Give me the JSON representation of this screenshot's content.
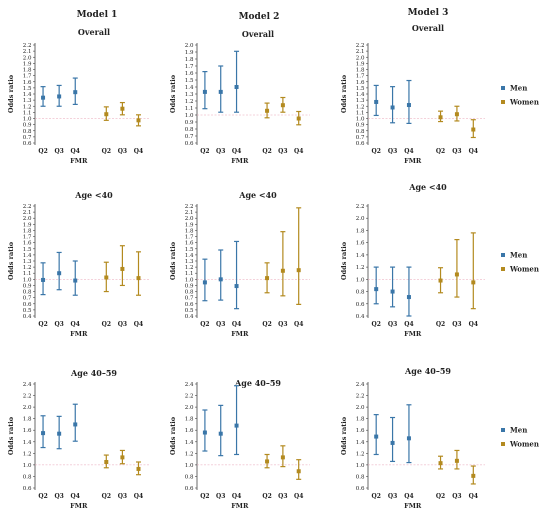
{
  "figure": {
    "model_titles": [
      "Model 1",
      "Model 2",
      "Model 3"
    ],
    "legend": [
      {
        "label": "Men",
        "color": "#3a76a8"
      },
      {
        "label": "Women",
        "color": "#b38a1f"
      }
    ]
  },
  "chart_data": [
    {
      "type": "scatter",
      "title": "Overall",
      "xlabel": "FMR",
      "ylabel": "Odds ratio",
      "ylim": [
        0.6,
        2.2
      ],
      "yticks": [
        0.6,
        0.7,
        0.8,
        0.9,
        1.0,
        1.1,
        1.2,
        1.3,
        1.4,
        1.5,
        1.6,
        1.7,
        1.8,
        1.9,
        2.0,
        2.1,
        2.2
      ],
      "categories": [
        "Q2",
        "Q3",
        "Q4",
        "Q2",
        "Q3",
        "Q4"
      ],
      "series": [
        {
          "name": "Men",
          "color": "#3a76a8",
          "points": [
            [
              1.34,
              1.2,
              1.52
            ],
            [
              1.36,
              1.2,
              1.54
            ],
            [
              1.43,
              1.23,
              1.66
            ]
          ]
        },
        {
          "name": "Women",
          "color": "#b38a1f",
          "points": [
            [
              1.07,
              0.97,
              1.19
            ],
            [
              1.16,
              1.06,
              1.26
            ],
            [
              0.97,
              0.88,
              1.06
            ]
          ]
        }
      ],
      "legend": false
    },
    {
      "type": "scatter",
      "title": "Overall",
      "xlabel": "FMR",
      "ylabel": "Odds ratio",
      "ylim": [
        0.6,
        2.0
      ],
      "yticks": [
        0.6,
        0.7,
        0.8,
        0.9,
        1.0,
        1.1,
        1.2,
        1.3,
        1.4,
        1.5,
        1.6,
        1.7,
        1.8,
        1.9,
        2.0
      ],
      "categories": [
        "Q2",
        "Q3",
        "Q4",
        "Q2",
        "Q3",
        "Q4"
      ],
      "series": [
        {
          "name": "Men",
          "color": "#3a76a8",
          "points": [
            [
              1.33,
              1.09,
              1.62
            ],
            [
              1.33,
              1.04,
              1.7
            ],
            [
              1.4,
              1.04,
              1.91
            ]
          ]
        },
        {
          "name": "Women",
          "color": "#b38a1f",
          "points": [
            [
              1.06,
              0.96,
              1.17
            ],
            [
              1.14,
              1.04,
              1.25
            ],
            [
              0.95,
              0.86,
              1.05
            ]
          ]
        }
      ],
      "legend": false
    },
    {
      "type": "scatter",
      "title": "Overall",
      "xlabel": "FMR",
      "ylabel": "Odds ratio",
      "ylim": [
        0.6,
        2.2
      ],
      "yticks": [
        0.6,
        0.7,
        0.8,
        0.9,
        1.0,
        1.1,
        1.2,
        1.3,
        1.4,
        1.5,
        1.6,
        1.7,
        1.8,
        1.9,
        2.0,
        2.1,
        2.2
      ],
      "categories": [
        "Q2",
        "Q3",
        "Q4",
        "Q2",
        "Q3",
        "Q4"
      ],
      "series": [
        {
          "name": "Men",
          "color": "#3a76a8",
          "points": [
            [
              1.27,
              1.05,
              1.54
            ],
            [
              1.18,
              0.93,
              1.52
            ],
            [
              1.22,
              0.92,
              1.62
            ]
          ]
        },
        {
          "name": "Women",
          "color": "#b38a1f",
          "points": [
            [
              1.02,
              0.95,
              1.12
            ],
            [
              1.07,
              0.96,
              1.2
            ],
            [
              0.82,
              0.69,
              0.98
            ]
          ]
        }
      ],
      "legend": true
    },
    {
      "type": "scatter",
      "title": "Age <40",
      "xlabel": "FMR",
      "ylabel": "Odds ratio",
      "ylim": [
        0.4,
        2.2
      ],
      "yticks": [
        0.4,
        0.5,
        0.6,
        0.7,
        0.8,
        0.9,
        1.0,
        1.1,
        1.2,
        1.3,
        1.4,
        1.5,
        1.6,
        1.7,
        1.8,
        1.9,
        2.0,
        2.1,
        2.2
      ],
      "categories": [
        "Q2",
        "Q3",
        "Q4",
        "Q2",
        "Q3",
        "Q4"
      ],
      "series": [
        {
          "name": "Men",
          "color": "#3a76a8",
          "points": [
            [
              0.99,
              0.75,
              1.27
            ],
            [
              1.1,
              0.83,
              1.44
            ],
            [
              0.98,
              0.74,
              1.3
            ]
          ]
        },
        {
          "name": "Women",
          "color": "#b38a1f",
          "points": [
            [
              1.03,
              0.8,
              1.28
            ],
            [
              1.17,
              0.9,
              1.55
            ],
            [
              1.02,
              0.74,
              1.45
            ]
          ]
        }
      ],
      "legend": false
    },
    {
      "type": "scatter",
      "title": "Age <40",
      "xlabel": "FMR",
      "ylabel": "Odds ratio",
      "ylim": [
        0.4,
        2.2
      ],
      "yticks": [
        0.4,
        0.5,
        0.6,
        0.7,
        0.8,
        0.9,
        1.0,
        1.1,
        1.2,
        1.3,
        1.4,
        1.5,
        1.6,
        1.7,
        1.8,
        1.9,
        2.0,
        2.1,
        2.2
      ],
      "categories": [
        "Q2",
        "Q3",
        "Q4",
        "Q2",
        "Q3",
        "Q4"
      ],
      "series": [
        {
          "name": "Men",
          "color": "#3a76a8",
          "points": [
            [
              0.95,
              0.65,
              1.33
            ],
            [
              1.0,
              0.66,
              1.48
            ],
            [
              0.89,
              0.52,
              1.62
            ]
          ]
        },
        {
          "name": "Women",
          "color": "#b38a1f",
          "points": [
            [
              1.02,
              0.78,
              1.27
            ],
            [
              1.14,
              0.73,
              1.78
            ],
            [
              1.15,
              0.59,
              2.17
            ]
          ]
        }
      ],
      "legend": false
    },
    {
      "type": "scatter",
      "title": "Age <40",
      "xlabel": "FMR",
      "ylabel": "Odds ratio",
      "ylim": [
        0.4,
        2.2
      ],
      "yticks": [
        0.4,
        0.6,
        0.8,
        1.0,
        1.2,
        1.4,
        1.6,
        1.8,
        2.0,
        2.2
      ],
      "categories": [
        "Q2",
        "Q3",
        "Q4",
        "Q2",
        "Q3",
        "Q4"
      ],
      "series": [
        {
          "name": "Men",
          "color": "#3a76a8",
          "points": [
            [
              0.84,
              0.6,
              1.2
            ],
            [
              0.8,
              0.55,
              1.2
            ],
            [
              0.71,
              0.4,
              1.2
            ]
          ]
        },
        {
          "name": "Women",
          "color": "#b38a1f",
          "points": [
            [
              0.98,
              0.78,
              1.19
            ],
            [
              1.08,
              0.71,
              1.65
            ],
            [
              0.95,
              0.52,
              1.76
            ]
          ]
        }
      ],
      "legend": true
    },
    {
      "type": "scatter",
      "title": "Age 40–59",
      "xlabel": "FMR",
      "ylabel": "Odds ratio",
      "ylim": [
        0.6,
        2.4
      ],
      "yticks": [
        0.6,
        0.8,
        1.0,
        1.2,
        1.4,
        1.6,
        1.8,
        2.0,
        2.2,
        2.4
      ],
      "categories": [
        "Q2",
        "Q3",
        "Q4",
        "Q2",
        "Q3",
        "Q4"
      ],
      "series": [
        {
          "name": "Men",
          "color": "#3a76a8",
          "points": [
            [
              1.55,
              1.3,
              1.85
            ],
            [
              1.54,
              1.28,
              1.84
            ],
            [
              1.7,
              1.41,
              2.05
            ]
          ]
        },
        {
          "name": "Women",
          "color": "#b38a1f",
          "points": [
            [
              1.05,
              0.95,
              1.17
            ],
            [
              1.13,
              1.02,
              1.25
            ],
            [
              0.93,
              0.83,
              1.05
            ]
          ]
        }
      ],
      "legend": false
    },
    {
      "type": "scatter",
      "title": "Age 40–59",
      "xlabel": "FMR",
      "ylabel": "Odds ratio",
      "ylim": [
        0.6,
        2.4
      ],
      "yticks": [
        0.6,
        0.8,
        1.0,
        1.2,
        1.4,
        1.6,
        1.8,
        2.0,
        2.2,
        2.4
      ],
      "categories": [
        "Q2",
        "Q3",
        "Q4",
        "Q2",
        "Q3",
        "Q4"
      ],
      "series": [
        {
          "name": "Men",
          "color": "#3a76a8",
          "points": [
            [
              1.56,
              1.24,
              1.95
            ],
            [
              1.54,
              1.16,
              2.03
            ],
            [
              1.68,
              1.18,
              2.37
            ]
          ]
        },
        {
          "name": "Women",
          "color": "#b38a1f",
          "points": [
            [
              1.06,
              0.95,
              1.18
            ],
            [
              1.13,
              0.97,
              1.33
            ],
            [
              0.89,
              0.75,
              1.09
            ]
          ]
        }
      ],
      "legend": false
    },
    {
      "type": "scatter",
      "title": "Age 40–59",
      "xlabel": "FMR",
      "ylabel": "Odds ratio",
      "ylim": [
        0.6,
        2.4
      ],
      "yticks": [
        0.6,
        0.8,
        1.0,
        1.2,
        1.4,
        1.6,
        1.8,
        2.0,
        2.2,
        2.4
      ],
      "categories": [
        "Q2",
        "Q3",
        "Q4",
        "Q2",
        "Q3",
        "Q4"
      ],
      "series": [
        {
          "name": "Men",
          "color": "#3a76a8",
          "points": [
            [
              1.49,
              1.18,
              1.87
            ],
            [
              1.38,
              1.06,
              1.82
            ],
            [
              1.46,
              1.04,
              2.04
            ]
          ]
        },
        {
          "name": "Women",
          "color": "#b38a1f",
          "points": [
            [
              1.03,
              0.93,
              1.15
            ],
            [
              1.07,
              0.93,
              1.25
            ],
            [
              0.81,
              0.67,
              0.98
            ]
          ]
        }
      ],
      "legend": true
    }
  ]
}
